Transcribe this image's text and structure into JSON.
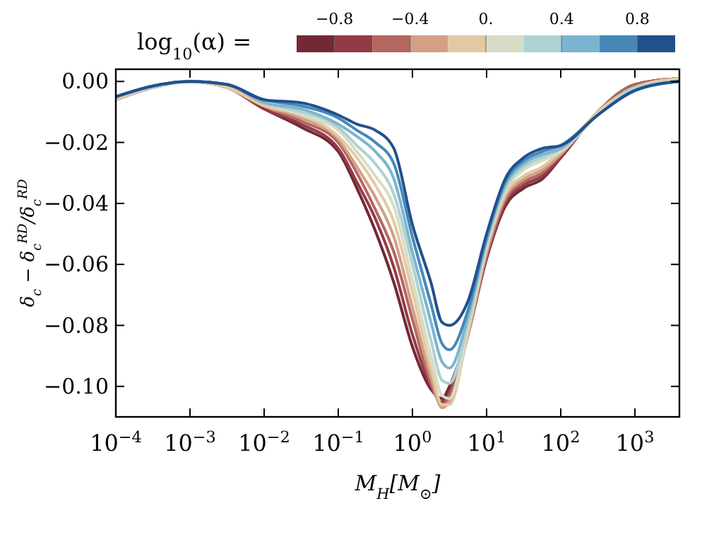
{
  "chart_data": {
    "type": "line",
    "xlabel": "M$_{H}$[M$_{⊙}$]",
    "ylabel": "δ$_{c}$ − δ$_{c}$$^{RD}$/δ$_{c}$$^{RD}$",
    "legend_title": "log$_{10}$(α) =",
    "log": "x",
    "xlim": [
      0.0001,
      3981
    ],
    "ylim": [
      -0.11,
      0.004
    ],
    "xticks": [
      {
        "value": 0.0001,
        "label": "10$^{−4}$"
      },
      {
        "value": 0.001,
        "label": "10$^{−3}$"
      },
      {
        "value": 0.01,
        "label": "10$^{−2}$"
      },
      {
        "value": 0.1,
        "label": "10$^{−1}$"
      },
      {
        "value": 1,
        "label": "10$^{0}$"
      },
      {
        "value": 10,
        "label": "10$^{1}$"
      },
      {
        "value": 100,
        "label": "10$^{2}$"
      },
      {
        "value": 1000,
        "label": "10$^{3}$"
      }
    ],
    "yticks": [
      {
        "value": 0,
        "label": "0.00"
      },
      {
        "value": -0.02,
        "label": "−0.02"
      },
      {
        "value": -0.04,
        "label": "−0.04"
      },
      {
        "value": -0.06,
        "label": "−0.06"
      },
      {
        "value": -0.08,
        "label": "−0.08"
      },
      {
        "value": -0.1,
        "label": "−0.10"
      }
    ],
    "clim": [
      -1,
      1
    ],
    "cticks": [
      {
        "value": -0.8,
        "label": "−0.8"
      },
      {
        "value": -0.4,
        "label": "−0.4"
      },
      {
        "value": 0,
        "label": "0."
      },
      {
        "value": 0.4,
        "label": "0.4"
      },
      {
        "value": 0.8,
        "label": "0.8"
      }
    ],
    "marker": "none",
    "line_style": "solid",
    "grid": false,
    "x": [
      0.0001,
      0.000316,
      0.001,
      0.00316,
      0.01,
      0.0316,
      0.1,
      0.178,
      0.316,
      0.562,
      1,
      1.78,
      2.51,
      3.16,
      5.62,
      10,
      17.8,
      31.6,
      56.2,
      100,
      316,
      1000,
      3981
    ],
    "series": [
      {
        "color": "#722935",
        "values": [
          -0.006,
          -0.002,
          0,
          -0.002,
          -0.009,
          -0.015,
          -0.023,
          -0.035,
          -0.049,
          -0.066,
          -0.087,
          -0.101,
          -0.104,
          -0.1,
          -0.082,
          -0.058,
          -0.041,
          -0.035,
          -0.032,
          -0.025,
          -0.01,
          -0.001,
          0.001
        ]
      },
      {
        "color": "#923b46",
        "values": [
          -0.006,
          -0.002,
          0,
          -0.002,
          -0.009,
          -0.014,
          -0.022,
          -0.033,
          -0.045,
          -0.061,
          -0.083,
          -0.1,
          -0.105,
          -0.102,
          -0.083,
          -0.058,
          -0.04,
          -0.034,
          -0.031,
          -0.025,
          -0.01,
          -0.001,
          0.001
        ]
      },
      {
        "color": "#b4675f",
        "values": [
          -0.006,
          -0.002,
          0,
          -0.002,
          -0.008,
          -0.013,
          -0.02,
          -0.03,
          -0.042,
          -0.056,
          -0.078,
          -0.099,
          -0.106,
          -0.103,
          -0.083,
          -0.057,
          -0.039,
          -0.033,
          -0.03,
          -0.024,
          -0.01,
          -0.001,
          0.001
        ]
      },
      {
        "color": "#d39f85",
        "values": [
          -0.006,
          -0.002,
          0,
          -0.002,
          -0.008,
          -0.012,
          -0.019,
          -0.028,
          -0.038,
          -0.051,
          -0.074,
          -0.097,
          -0.107,
          -0.105,
          -0.083,
          -0.056,
          -0.038,
          -0.032,
          -0.029,
          -0.024,
          -0.01,
          -0.002,
          0.001
        ]
      },
      {
        "color": "#e3c9a3",
        "values": [
          -0.006,
          -0.002,
          0,
          -0.002,
          -0.008,
          -0.011,
          -0.018,
          -0.025,
          -0.034,
          -0.046,
          -0.069,
          -0.094,
          -0.106,
          -0.106,
          -0.082,
          -0.055,
          -0.037,
          -0.031,
          -0.028,
          -0.023,
          -0.01,
          -0.002,
          0.001
        ]
      },
      {
        "color": "#d7dcc6",
        "values": [
          -0.005,
          -0.002,
          0,
          -0.001,
          -0.007,
          -0.011,
          -0.016,
          -0.023,
          -0.031,
          -0.041,
          -0.065,
          -0.09,
          -0.103,
          -0.104,
          -0.081,
          -0.054,
          -0.036,
          -0.029,
          -0.026,
          -0.023,
          -0.011,
          -0.002,
          0
        ]
      },
      {
        "color": "#aed1d2",
        "values": [
          -0.005,
          -0.002,
          0,
          -0.001,
          -0.007,
          -0.01,
          -0.015,
          -0.021,
          -0.027,
          -0.037,
          -0.06,
          -0.085,
          -0.098,
          -0.099,
          -0.079,
          -0.053,
          -0.035,
          -0.028,
          -0.025,
          -0.022,
          -0.011,
          -0.002,
          0
        ]
      },
      {
        "color": "#7bb4d0",
        "values": [
          -0.005,
          -0.0015,
          0,
          -0.001,
          -0.007,
          -0.009,
          -0.014,
          -0.018,
          -0.023,
          -0.032,
          -0.056,
          -0.079,
          -0.092,
          -0.094,
          -0.077,
          -0.052,
          -0.034,
          -0.027,
          -0.024,
          -0.022,
          -0.011,
          -0.003,
          0
        ]
      },
      {
        "color": "#4788b8",
        "values": [
          -0.005,
          -0.0015,
          0,
          -0.001,
          -0.006,
          -0.008,
          -0.012,
          -0.016,
          -0.02,
          -0.027,
          -0.051,
          -0.073,
          -0.086,
          -0.088,
          -0.075,
          -0.051,
          -0.033,
          -0.026,
          -0.023,
          -0.021,
          -0.011,
          -0.003,
          0
        ]
      },
      {
        "color": "#22508c",
        "values": [
          -0.005,
          -0.0015,
          0,
          -0.001,
          -0.006,
          -0.007,
          -0.011,
          -0.014,
          -0.016,
          -0.022,
          -0.047,
          -0.066,
          -0.079,
          -0.08,
          -0.072,
          -0.05,
          -0.032,
          -0.025,
          -0.022,
          -0.021,
          -0.011,
          -0.003,
          0
        ]
      }
    ]
  }
}
